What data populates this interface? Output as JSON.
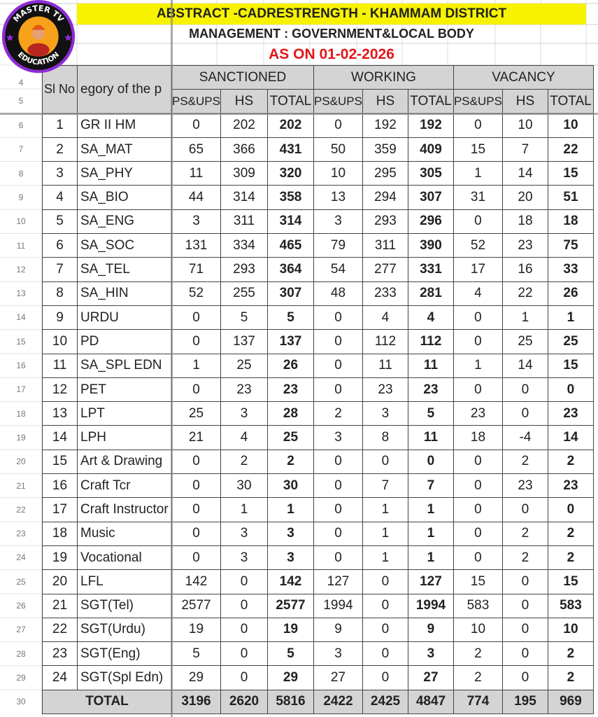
{
  "logo": {
    "text_top": "MASTER TV",
    "text_bottom": "EDUCATION"
  },
  "title": "ABSTRACT -CADRESTRENGTH - KHAMMAM DISTRICT",
  "management": "MANAGEMENT : GOVERNMENT&LOCAL BODY",
  "as_on": "AS ON 01-02-2026",
  "colors": {
    "title_bg": "#f7f300",
    "date_text": "#e3161b",
    "header_bg": "#d4d4d4"
  },
  "row_numbers": [
    "4",
    "5",
    "6",
    "7",
    "8",
    "9",
    "10",
    "11",
    "12",
    "13",
    "14",
    "15",
    "16",
    "17",
    "18",
    "19",
    "20",
    "21",
    "22",
    "23",
    "24",
    "25",
    "26",
    "27",
    "28",
    "29",
    "30"
  ],
  "header": {
    "sl_no": "Sl No",
    "category": "egory of the p",
    "groups": [
      "SANCTIONED",
      "WORKING",
      "VACANCY"
    ],
    "sub": [
      "PS&UPS",
      "HS",
      "TOTAL",
      "PS&UPS",
      "HS",
      "TOTAL",
      "PS&UPS",
      "HS",
      "TOTAL"
    ]
  },
  "rows": [
    [
      "1",
      "GR II HM",
      "0",
      "202",
      "202",
      "0",
      "192",
      "192",
      "0",
      "10",
      "10"
    ],
    [
      "2",
      "SA_MAT",
      "65",
      "366",
      "431",
      "50",
      "359",
      "409",
      "15",
      "7",
      "22"
    ],
    [
      "3",
      "SA_PHY",
      "11",
      "309",
      "320",
      "10",
      "295",
      "305",
      "1",
      "14",
      "15"
    ],
    [
      "4",
      "SA_BIO",
      "44",
      "314",
      "358",
      "13",
      "294",
      "307",
      "31",
      "20",
      "51"
    ],
    [
      "5",
      "SA_ENG",
      "3",
      "311",
      "314",
      "3",
      "293",
      "296",
      "0",
      "18",
      "18"
    ],
    [
      "6",
      "SA_SOC",
      "131",
      "334",
      "465",
      "79",
      "311",
      "390",
      "52",
      "23",
      "75"
    ],
    [
      "7",
      "SA_TEL",
      "71",
      "293",
      "364",
      "54",
      "277",
      "331",
      "17",
      "16",
      "33"
    ],
    [
      "8",
      "SA_HIN",
      "52",
      "255",
      "307",
      "48",
      "233",
      "281",
      "4",
      "22",
      "26"
    ],
    [
      "9",
      "URDU",
      "0",
      "5",
      "5",
      "0",
      "4",
      "4",
      "0",
      "1",
      "1"
    ],
    [
      "10",
      "PD",
      "0",
      "137",
      "137",
      "0",
      "112",
      "112",
      "0",
      "25",
      "25"
    ],
    [
      "11",
      "SA_SPL EDN",
      "1",
      "25",
      "26",
      "0",
      "11",
      "11",
      "1",
      "14",
      "15"
    ],
    [
      "12",
      "PET",
      "0",
      "23",
      "23",
      "0",
      "23",
      "23",
      "0",
      "0",
      "0"
    ],
    [
      "13",
      "LPT",
      "25",
      "3",
      "28",
      "2",
      "3",
      "5",
      "23",
      "0",
      "23"
    ],
    [
      "14",
      "LPH",
      "21",
      "4",
      "25",
      "3",
      "8",
      "11",
      "18",
      "-4",
      "14"
    ],
    [
      "15",
      "Art & Drawing",
      "0",
      "2",
      "2",
      "0",
      "0",
      "0",
      "0",
      "2",
      "2"
    ],
    [
      "16",
      "Craft Tcr",
      "0",
      "30",
      "30",
      "0",
      "7",
      "7",
      "0",
      "23",
      "23"
    ],
    [
      "17",
      "Craft Instructor",
      "0",
      "1",
      "1",
      "0",
      "1",
      "1",
      "0",
      "0",
      "0"
    ],
    [
      "18",
      "Music",
      "0",
      "3",
      "3",
      "0",
      "1",
      "1",
      "0",
      "2",
      "2"
    ],
    [
      "19",
      "Vocational",
      "0",
      "3",
      "3",
      "0",
      "1",
      "1",
      "0",
      "2",
      "2"
    ],
    [
      "20",
      "LFL",
      "142",
      "0",
      "142",
      "127",
      "0",
      "127",
      "15",
      "0",
      "15"
    ],
    [
      "21",
      "SGT(Tel)",
      "2577",
      "0",
      "2577",
      "1994",
      "0",
      "1994",
      "583",
      "0",
      "583"
    ],
    [
      "22",
      "SGT(Urdu)",
      "19",
      "0",
      "19",
      "9",
      "0",
      "9",
      "10",
      "0",
      "10"
    ],
    [
      "23",
      "SGT(Eng)",
      "5",
      "0",
      "5",
      "3",
      "0",
      "3",
      "2",
      "0",
      "2"
    ],
    [
      "24",
      "SGT(Spl Edn)",
      "29",
      "0",
      "29",
      "27",
      "0",
      "27",
      "2",
      "0",
      "2"
    ]
  ],
  "total": {
    "label": "TOTAL",
    "values": [
      "3196",
      "2620",
      "5816",
      "2422",
      "2425",
      "4847",
      "774",
      "195",
      "969"
    ]
  }
}
